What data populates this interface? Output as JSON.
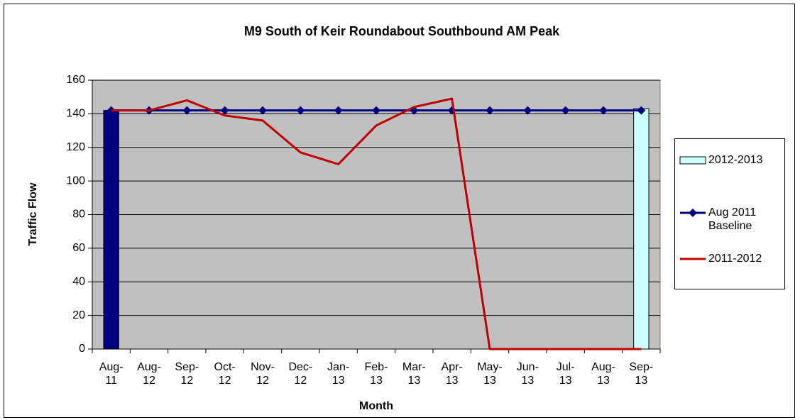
{
  "chart_data": {
    "type": "line",
    "title": "M9 South of Keir Roundabout Southbound AM Peak",
    "x_label": "Month",
    "y_label": "Traffic Flow",
    "categories": [
      "Aug-11",
      "Aug-12",
      "Sep-12",
      "Oct-12",
      "Nov-12",
      "Dec-12",
      "Jan-13",
      "Feb-13",
      "Mar-13",
      "Apr-13",
      "May-13",
      "Jun-13",
      "Jul-13",
      "Aug-13",
      "Sep-13"
    ],
    "series": [
      {
        "name": "2012-2013",
        "type": "bar",
        "color": "#ccffff",
        "colors": [
          "#000080",
          null,
          null,
          null,
          null,
          null,
          null,
          null,
          null,
          null,
          null,
          null,
          null,
          null,
          "#ccffff"
        ],
        "values": [
          142,
          null,
          null,
          null,
          null,
          null,
          null,
          null,
          null,
          null,
          null,
          null,
          null,
          null,
          143
        ]
      },
      {
        "name": "Aug 2011 Baseline",
        "type": "line",
        "marker": "diamond",
        "color": "#000080",
        "values": [
          142,
          142,
          142,
          142,
          142,
          142,
          142,
          142,
          142,
          142,
          142,
          142,
          142,
          142,
          142
        ]
      },
      {
        "name": "2011-2012",
        "type": "line",
        "color": "#c00000",
        "values": [
          142,
          142,
          148,
          139,
          136,
          117,
          110,
          133,
          144,
          149,
          0,
          0,
          0,
          0,
          0
        ]
      }
    ],
    "ylim": [
      0,
      160
    ],
    "yticks": [
      0,
      20,
      40,
      60,
      80,
      100,
      120,
      140,
      160
    ],
    "grid": true,
    "plot_background": "#c0c0c0",
    "legend": "right"
  }
}
